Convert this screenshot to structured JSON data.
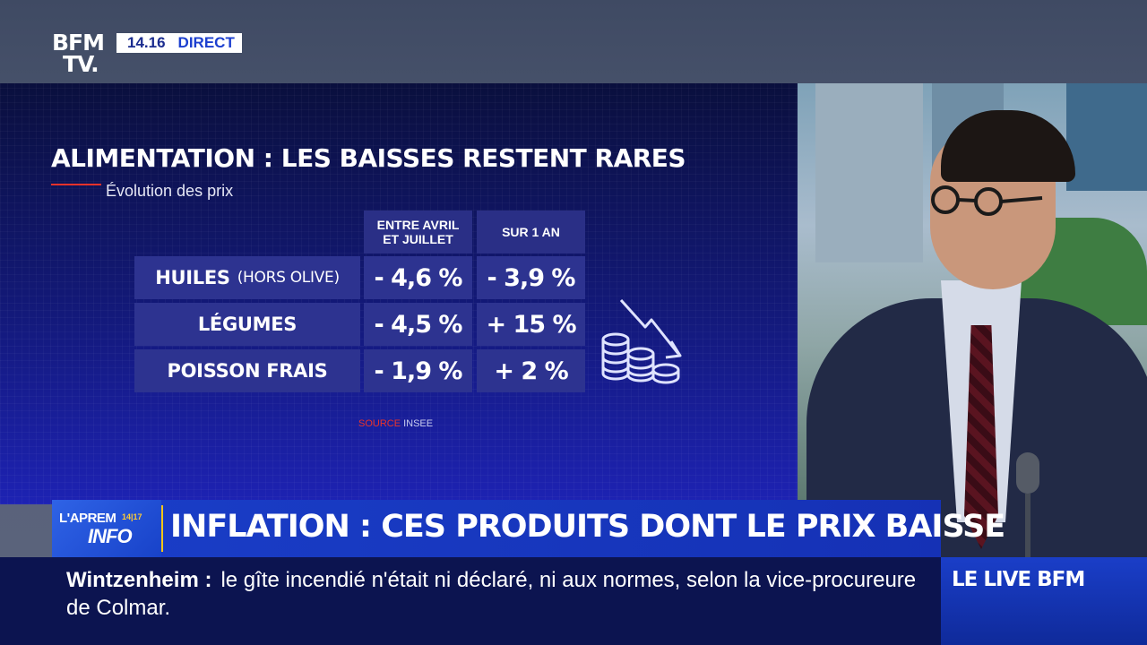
{
  "channel": {
    "logo_line1": "BFM",
    "logo_line2": "TV.",
    "time": "14.16",
    "live_label": "DIRECT"
  },
  "infographic": {
    "title": "ALIMENTATION : LES BAISSES RESTENT RARES",
    "subtitle": "Évolution des prix",
    "columns": [
      "ENTRE AVRIL ET JUILLET",
      "SUR 1 AN"
    ],
    "rows": [
      {
        "label": "HUILES",
        "note": "(HORS OLIVE)",
        "values": [
          "- 4,6 %",
          "- 3,9 %"
        ]
      },
      {
        "label": "LÉGUMES",
        "note": "",
        "values": [
          "- 4,5 %",
          "+ 15 %"
        ]
      },
      {
        "label": "POISSON FRAIS",
        "note": "",
        "values": [
          "- 1,9 %",
          "+ 2 %"
        ]
      }
    ],
    "source_label": "SOURCE",
    "source_value": "INSEE",
    "icon": "falling-coins-icon"
  },
  "headline_bar": {
    "show_line1": "L'APREM",
    "show_time": "14|17",
    "show_line2": "INFO",
    "headline": "INFLATION : CES PRODUITS DONT LE PRIX BAISSE"
  },
  "ticker": {
    "place": "Wintzenheim :",
    "text": "le gîte incendié n'était ni déclaré, ni aux normes, selon la vice-procureure de Colmar."
  },
  "live_box": {
    "label": "LE LIVE BFM"
  },
  "colors": {
    "accent_red": "#e8322b",
    "brand_blue": "#1a3ec8",
    "panel_blue": "#13197a"
  }
}
